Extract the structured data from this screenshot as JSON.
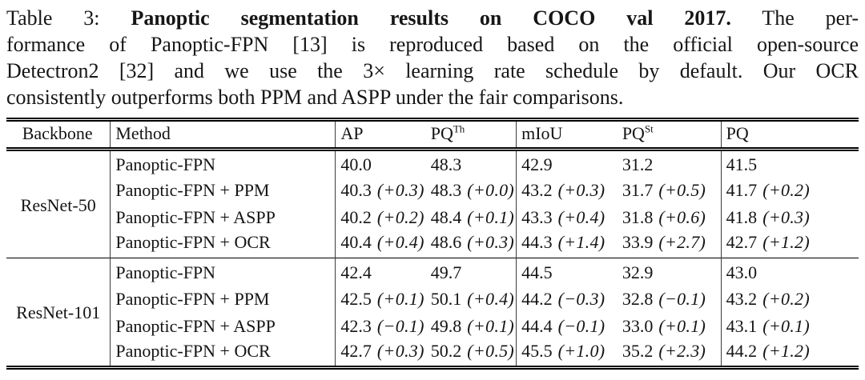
{
  "caption": {
    "line1_prefix": "Table 3: ",
    "line1_bold": "Panoptic segmentation results on COCO val 2017.",
    "line1_rest": "The per-",
    "line2": "formance of Panoptic-FPN [13] is reproduced based on the official open-source",
    "line3": "Detectron2 [32] and we use the 3× learning rate schedule by default. Our OCR",
    "line4": "consistently outperforms both PPM and ASPP under the fair comparisons."
  },
  "table": {
    "headers": {
      "backbone": "Backbone",
      "method": "Method",
      "ap": "AP",
      "pq_th_base": "PQ",
      "pq_th_sup": "Th",
      "miou": "mIoU",
      "pq_st_base": "PQ",
      "pq_st_sup": "St",
      "pq": "PQ"
    },
    "groups": [
      {
        "backbone": "ResNet-50",
        "rows": [
          {
            "method": "Panoptic-FPN",
            "ap": "40.0",
            "ap_d": "",
            "pqth": "48.3",
            "pqth_d": "",
            "miou": "42.9",
            "miou_d": "",
            "pqst": "31.2",
            "pqst_d": "",
            "pq": "41.5",
            "pq_d": ""
          },
          {
            "method": "Panoptic-FPN + PPM",
            "ap": "40.3",
            "ap_d": "(+0.3)",
            "pqth": "48.3",
            "pqth_d": "(+0.0)",
            "miou": "43.2",
            "miou_d": "(+0.3)",
            "pqst": "31.7",
            "pqst_d": "(+0.5)",
            "pq": "41.7",
            "pq_d": "(+0.2)"
          },
          {
            "method": "Panoptic-FPN + ASPP",
            "ap": "40.2",
            "ap_d": "(+0.2)",
            "pqth": "48.4",
            "pqth_d": "(+0.1)",
            "miou": "43.3",
            "miou_d": "(+0.4)",
            "pqst": "31.8",
            "pqst_d": "(+0.6)",
            "pq": "41.8",
            "pq_d": "(+0.3)"
          },
          {
            "method": "Panoptic-FPN + OCR",
            "ap": "40.4",
            "ap_d": "(+0.4)",
            "pqth": "48.6",
            "pqth_d": "(+0.3)",
            "miou": "44.3",
            "miou_d": "(+1.4)",
            "pqst": "33.9",
            "pqst_d": "(+2.7)",
            "pq": "42.7",
            "pq_d": "(+1.2)"
          }
        ]
      },
      {
        "backbone": "ResNet-101",
        "rows": [
          {
            "method": "Panoptic-FPN",
            "ap": "42.4",
            "ap_d": "",
            "pqth": "49.7",
            "pqth_d": "",
            "miou": "44.5",
            "miou_d": "",
            "pqst": "32.9",
            "pqst_d": "",
            "pq": "43.0",
            "pq_d": ""
          },
          {
            "method": "Panoptic-FPN + PPM",
            "ap": "42.5",
            "ap_d": "(+0.1)",
            "pqth": "50.1",
            "pqth_d": "(+0.4)",
            "miou": "44.2",
            "miou_d": "(−0.3)",
            "pqst": "32.8",
            "pqst_d": "(−0.1)",
            "pq": "43.2",
            "pq_d": "(+0.2)"
          },
          {
            "method": "Panoptic-FPN + ASPP",
            "ap": "42.3",
            "ap_d": "(−0.1)",
            "pqth": "49.8",
            "pqth_d": "(+0.1)",
            "miou": "44.4",
            "miou_d": "(−0.1)",
            "pqst": "33.0",
            "pqst_d": "(+0.1)",
            "pq": "43.1",
            "pq_d": "(+0.1)"
          },
          {
            "method": "Panoptic-FPN + OCR",
            "ap": "42.7",
            "ap_d": "(+0.3)",
            "pqth": "50.2",
            "pqth_d": "(+0.5)",
            "miou": "45.5",
            "miou_d": "(+1.0)",
            "pqst": "35.2",
            "pqst_d": "(+2.3)",
            "pq": "44.2",
            "pq_d": "(+1.2)"
          }
        ]
      }
    ]
  }
}
